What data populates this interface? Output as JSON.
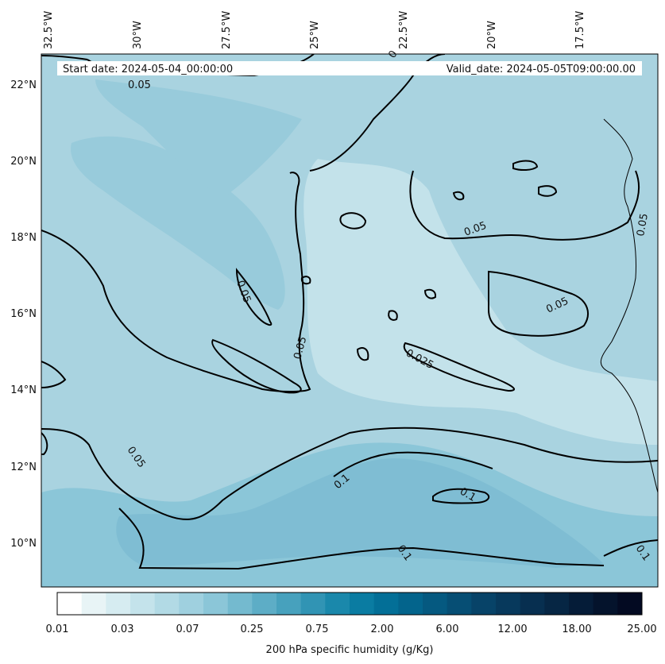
{
  "header": {
    "start_date": "Start date: 2024-05-04_00:00:00",
    "valid_date": "Valid_date: 2024-05-05T09:00:00.00"
  },
  "longitude_labels": [
    "32.5°W",
    "30°W",
    "27.5°W",
    "25°W",
    "22.5°W",
    "20°W",
    "17.5°W"
  ],
  "latitude_labels": [
    "22°N",
    "20°N",
    "18°N",
    "16°N",
    "14°N",
    "12°N",
    "10°N"
  ],
  "contour_labels": [
    "0.05",
    "0.05",
    "0.05",
    "0.05",
    "0.05",
    "0.05",
    "0.05",
    "0.025",
    "0.1",
    "0.1",
    "0.1",
    "0.1",
    "0"
  ],
  "colorbar": {
    "tick_labels": [
      "0.01",
      "0.03",
      "0.07",
      "0.25",
      "0.75",
      "2.00",
      "6.00",
      "12.00",
      "18.00",
      "25.00"
    ],
    "title": "200 hPa specific humidity (g/Kg)",
    "colors": [
      "#ffffff",
      "#e8f4f6",
      "#d6ecf1",
      "#c4e3eb",
      "#b2dae5",
      "#9fd0df",
      "#8bc6d8",
      "#74bacf",
      "#5dadc6",
      "#47a1bd",
      "#3194b4",
      "#1a88ab",
      "#0a7ca2",
      "#036f97",
      "#03648c",
      "#055980",
      "#064e74",
      "#074368",
      "#07395c",
      "#072f50",
      "#062644",
      "#051c38",
      "#04132c",
      "#030a22"
    ]
  },
  "colors": {
    "map_base": "#a9d3e0",
    "light_field": "#c3e2ea",
    "mid_field": "#98cbdb",
    "dark_field": "#7fbdd3",
    "contour": "#000000"
  }
}
